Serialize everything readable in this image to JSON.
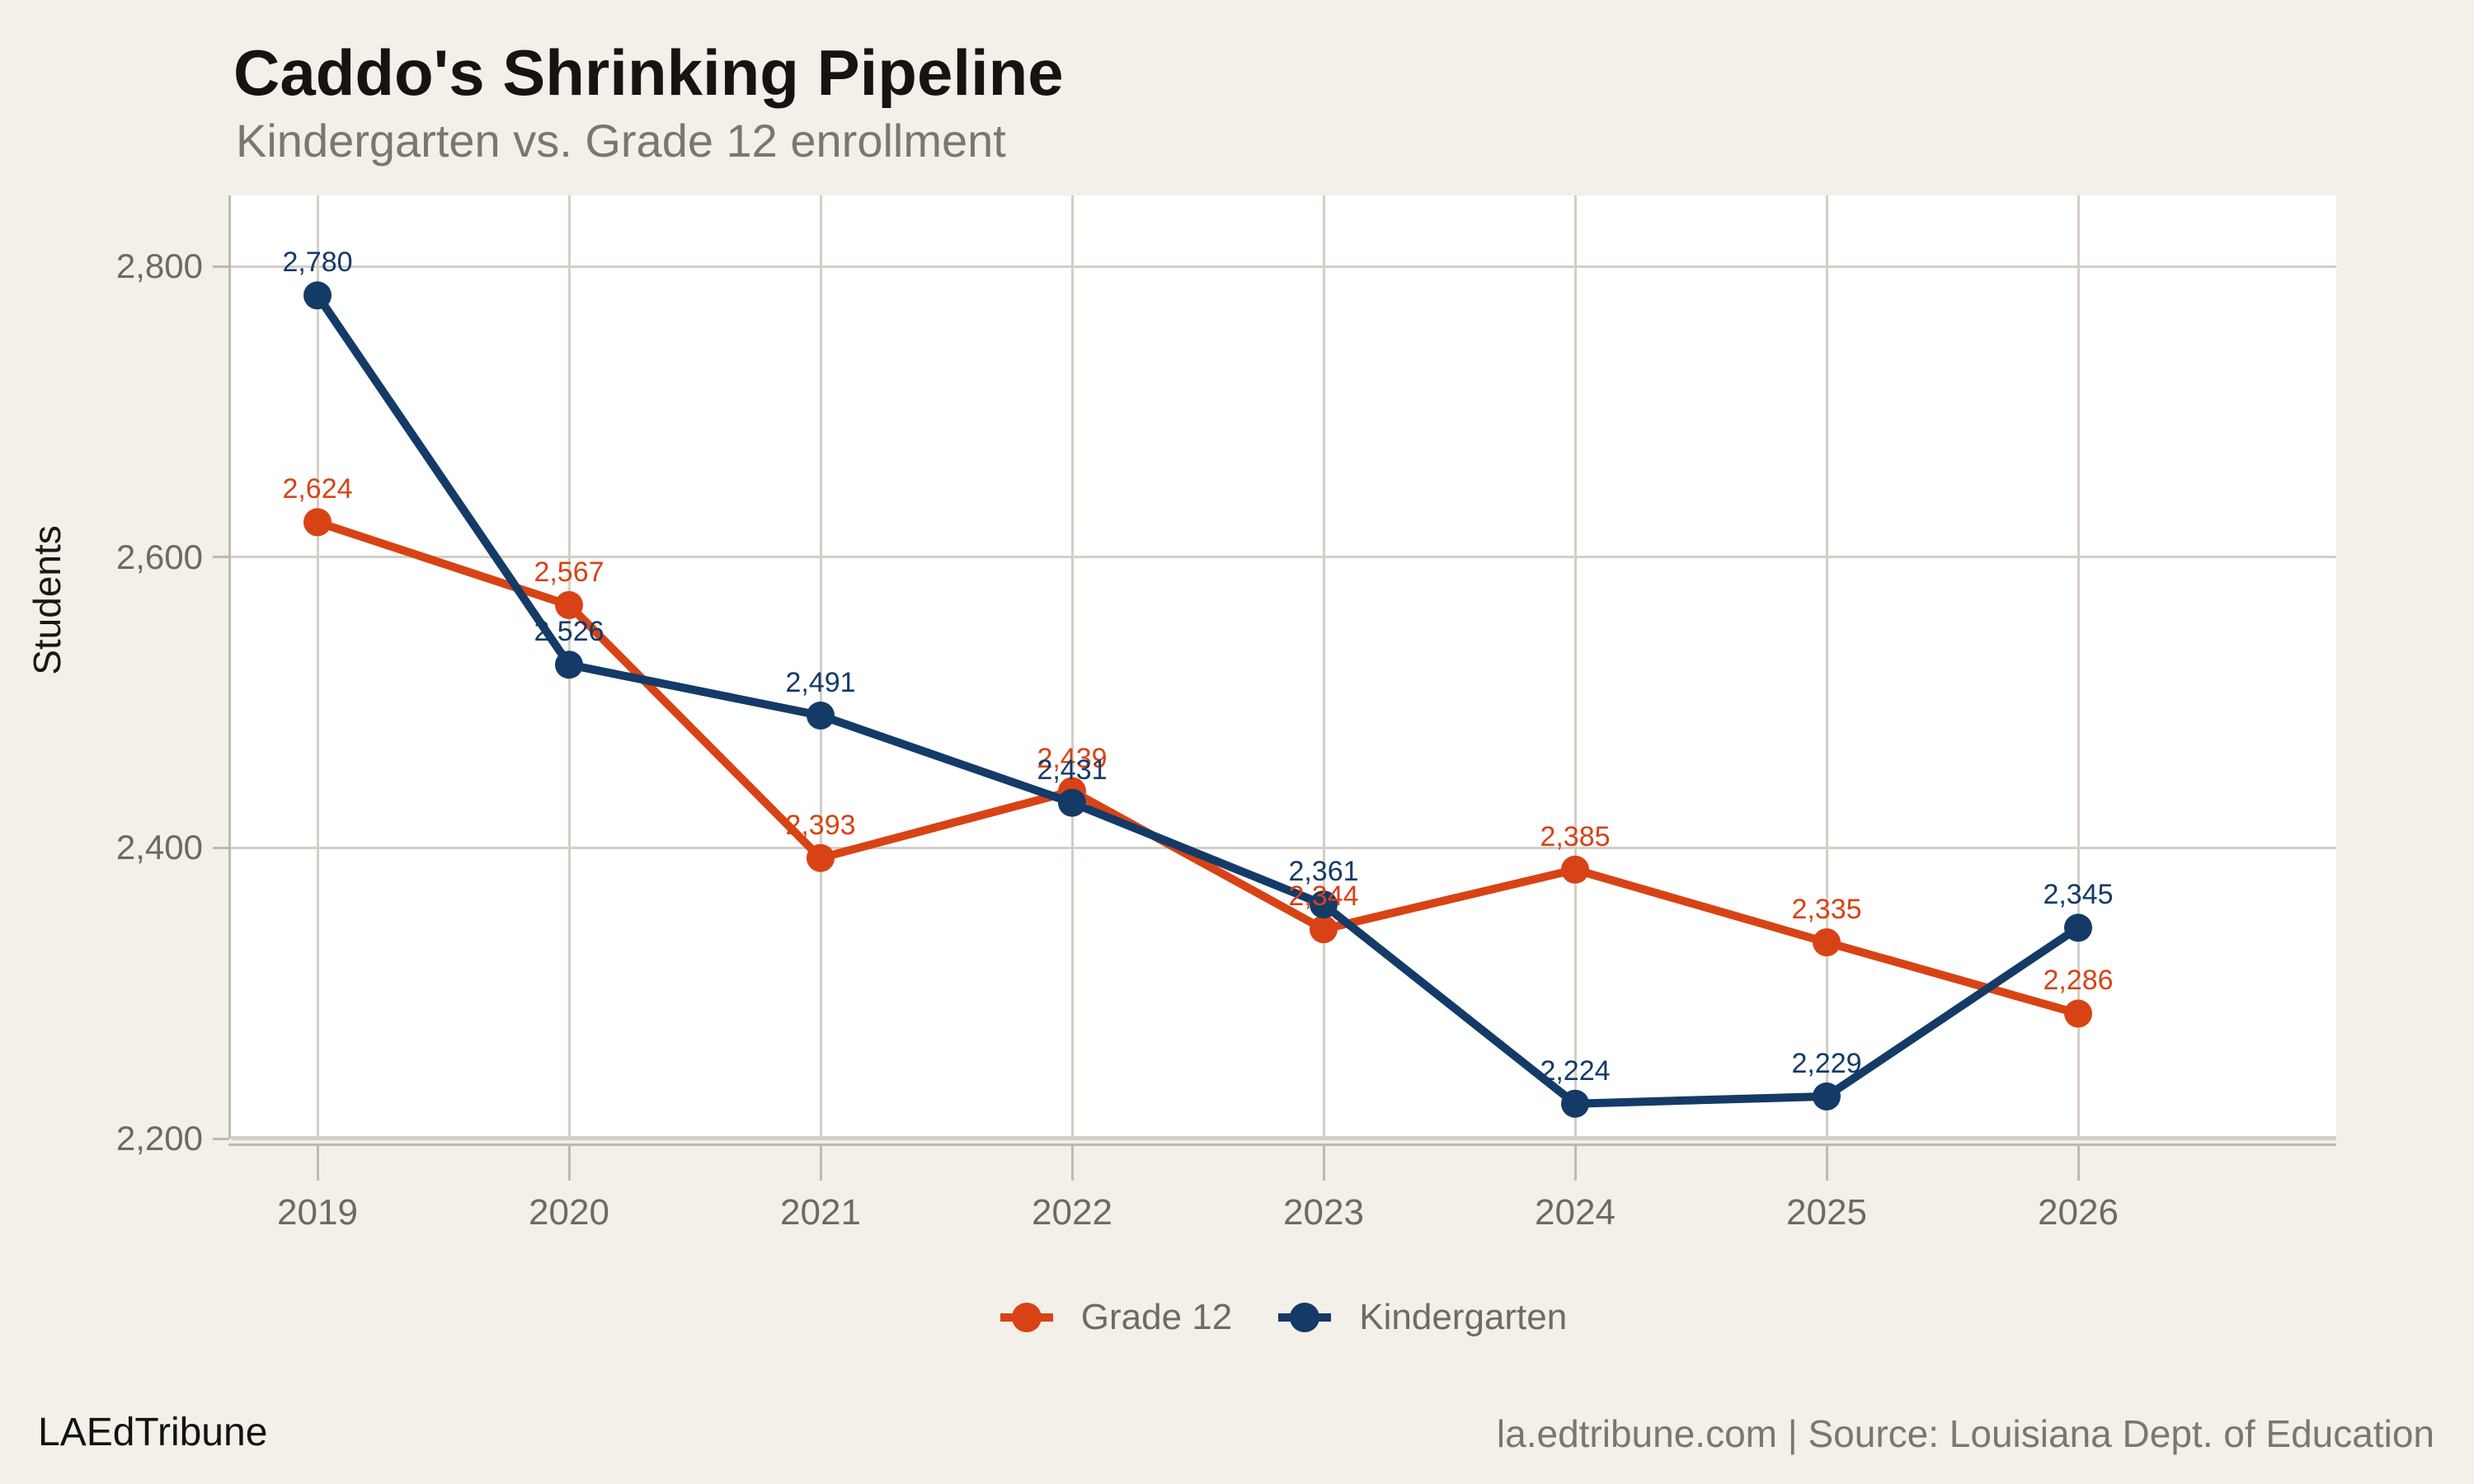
{
  "chart_data": {
    "type": "line",
    "title": "Caddo's Shrinking Pipeline",
    "subtitle": "Kindergarten vs. Grade 12 enrollment",
    "xlabel": "",
    "ylabel": "Students",
    "x": [
      2019,
      2020,
      2021,
      2022,
      2023,
      2024,
      2025,
      2026
    ],
    "xtick_labels": [
      "2019",
      "2020",
      "2021",
      "2022",
      "2023",
      "2024",
      "2025",
      "2026"
    ],
    "yticks": [
      2200,
      2400,
      2600,
      2800
    ],
    "ytick_labels": [
      "2,200",
      "2,400",
      "2,600",
      "2,800"
    ],
    "ylim": [
      2200,
      2850
    ],
    "grid": true,
    "legend_position": "bottom-center",
    "value_labels": true,
    "series": [
      {
        "name": "Grade 12",
        "color": "#d84315",
        "values": [
          2624,
          2567,
          2393,
          2439,
          2344,
          2385,
          2335,
          2286
        ]
      },
      {
        "name": "Kindergarten",
        "color": "#143a68",
        "values": [
          2780,
          2526,
          2491,
          2431,
          2361,
          2224,
          2229,
          2345
        ]
      }
    ],
    "palette": {
      "background": "#f3f0e9",
      "plot_background": "#ffffff",
      "gridline": "#d4cec5",
      "axis": "#c0b9ad",
      "tick_text": "#6e6a63",
      "title_text": "#161310",
      "subtitle_text": "#7b7770",
      "legend_text": "#6f6b64"
    }
  },
  "footer": {
    "brand": "LAEdTribune",
    "note": "la.edtribune.com | Source: Louisiana Dept. of Education"
  }
}
